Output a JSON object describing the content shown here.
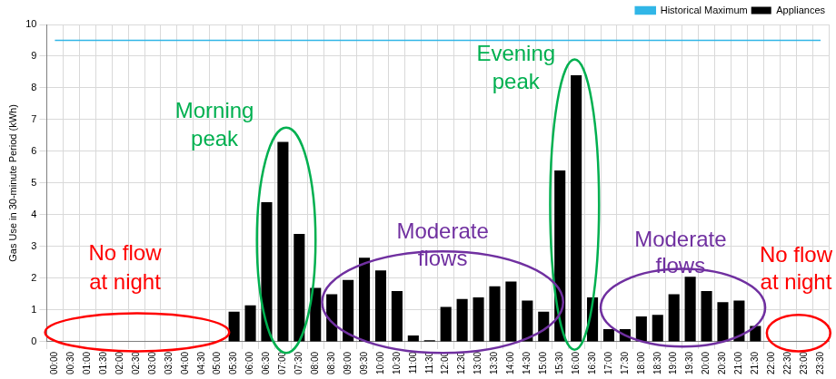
{
  "chart_data": {
    "type": "bar",
    "y_label": "Gas Use in 30-minute Period (kWh)",
    "categories": [
      "00:00",
      "00:30",
      "01:00",
      "01:30",
      "02:00",
      "02:30",
      "03:00",
      "03:30",
      "04:00",
      "04:30",
      "05:00",
      "05:30",
      "06:00",
      "06:30",
      "07:00",
      "07:30",
      "08:00",
      "08:30",
      "09:00",
      "09:30",
      "10:00",
      "10:30",
      "11:00",
      "11:30",
      "12:00",
      "12:30",
      "13:00",
      "13:30",
      "14:00",
      "14:30",
      "15:00",
      "15:30",
      "16:00",
      "16:30",
      "17:00",
      "17:30",
      "18:00",
      "18:30",
      "19:00",
      "19:30",
      "20:00",
      "20:30",
      "21:00",
      "21:30",
      "22:00",
      "22:30",
      "23:00",
      "23:30"
    ],
    "series": [
      {
        "name": "Appliances",
        "type": "bar",
        "color": "#000000",
        "values": [
          0,
          0,
          0,
          0,
          0,
          0,
          0,
          0,
          0,
          0,
          0,
          0.95,
          1.15,
          4.4,
          6.3,
          3.4,
          1.7,
          1.5,
          1.95,
          2.65,
          2.25,
          1.6,
          0.2,
          0.05,
          1.1,
          1.35,
          1.4,
          1.75,
          1.9,
          1.3,
          0.95,
          5.4,
          8.4,
          1.4,
          0.4,
          0.4,
          0.8,
          0.85,
          1.5,
          2.05,
          1.6,
          1.25,
          1.3,
          0.5,
          0,
          0,
          0,
          0
        ]
      },
      {
        "name": "Historical Maximum",
        "type": "line",
        "color": "#31b6e7",
        "values": [
          9.5,
          9.5,
          9.5,
          9.5,
          9.5,
          9.5,
          9.5,
          9.5,
          9.5,
          9.5,
          9.5,
          9.5,
          9.5,
          9.5,
          9.5,
          9.5,
          9.5,
          9.5,
          9.5,
          9.5,
          9.5,
          9.5,
          9.5,
          9.5,
          9.5,
          9.5,
          9.5,
          9.5,
          9.5,
          9.5,
          9.5,
          9.5,
          9.5,
          9.5,
          9.5,
          9.5,
          9.5,
          9.5,
          9.5,
          9.5,
          9.5,
          9.5,
          9.5,
          9.5,
          9.5,
          9.5,
          9.5,
          9.5
        ]
      }
    ],
    "ylim": [
      0,
      10
    ],
    "yticks": [
      0,
      1,
      2,
      3,
      4,
      5,
      6,
      7,
      8,
      9,
      10
    ],
    "grid": true,
    "legend": "top-right",
    "annotations": [
      {
        "text": [
          "Morning",
          "peak"
        ],
        "color": "#00b050"
      },
      {
        "text": [
          "Evening",
          "peak"
        ],
        "color": "#00b050"
      },
      {
        "text": [
          "Moderate",
          "flows"
        ],
        "color": "#7030a0"
      },
      {
        "text": [
          "Moderate",
          "flows"
        ],
        "color": "#7030a0"
      },
      {
        "text": [
          "No flow",
          "at night"
        ],
        "color": "#ff0000"
      },
      {
        "text": [
          "No flow",
          "at night"
        ],
        "color": "#ff0000"
      }
    ]
  }
}
